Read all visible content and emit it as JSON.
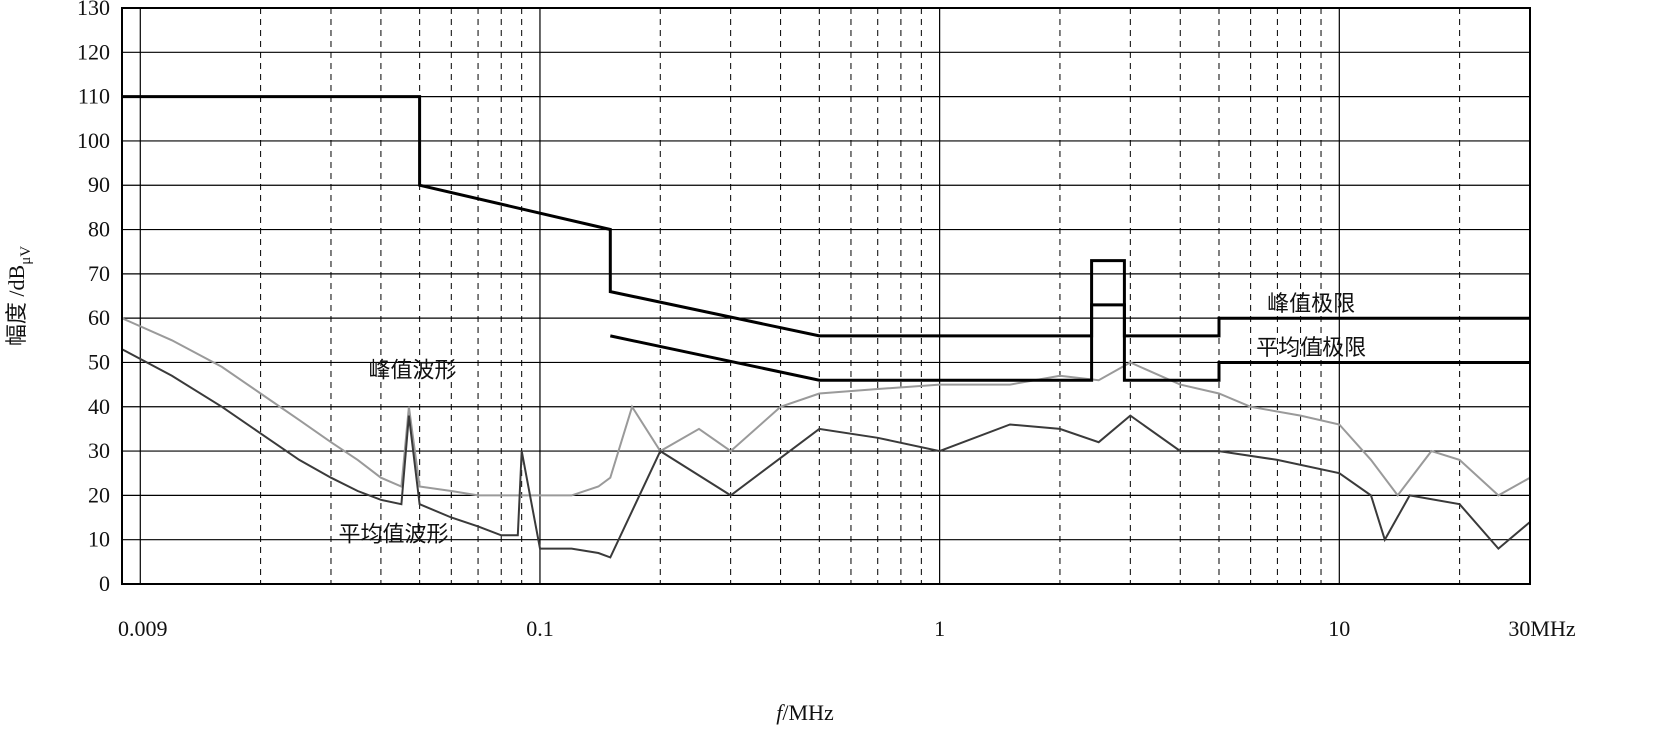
{
  "chart_data": {
    "type": "line",
    "title": "",
    "xlabel": "f/MHz",
    "xlabel_italic": "f",
    "xlabel_unit": "/MHz",
    "ylabel": "幅度/dBμV",
    "ylabel_main": "幅度 /dB",
    "ylabel_sub": "μV",
    "x_scale": "log",
    "xlim": [
      0.009,
      30
    ],
    "ylim": [
      0,
      130
    ],
    "grid": true,
    "legend": "none",
    "x_ticks": [
      {
        "value": 0.009,
        "label": "0.009"
      },
      {
        "value": 0.1,
        "label": "0.1"
      },
      {
        "value": 1,
        "label": "1"
      },
      {
        "value": 10,
        "label": "10"
      },
      {
        "value": 30,
        "label": "30MHz"
      }
    ],
    "y_ticks": [
      {
        "value": 0,
        "label": "0"
      },
      {
        "value": 10,
        "label": "10"
      },
      {
        "value": 20,
        "label": "20"
      },
      {
        "value": 30,
        "label": "30"
      },
      {
        "value": 40,
        "label": "40"
      },
      {
        "value": 50,
        "label": "50"
      },
      {
        "value": 60,
        "label": "60"
      },
      {
        "value": 70,
        "label": "70"
      },
      {
        "value": 80,
        "label": "80"
      },
      {
        "value": 90,
        "label": "90"
      },
      {
        "value": 100,
        "label": "100"
      },
      {
        "value": 110,
        "label": "110"
      },
      {
        "value": 120,
        "label": "120"
      },
      {
        "value": 130,
        "label": "130"
      }
    ],
    "series": [
      {
        "key": "peak_limit",
        "name": "峰值极限",
        "color": "#000000",
        "x": [
          0.009,
          0.05,
          0.05,
          0.15,
          0.15,
          0.5,
          2.4,
          2.4,
          2.9,
          2.9,
          5,
          5,
          30
        ],
        "y": [
          110,
          110,
          90,
          80,
          66,
          56,
          56,
          73,
          73,
          56,
          56,
          60,
          60
        ]
      },
      {
        "key": "average_limit",
        "name": "平均值极限",
        "color": "#000000",
        "x": [
          0.15,
          0.5,
          2.4,
          2.4,
          2.9,
          2.9,
          5,
          5,
          30
        ],
        "y": [
          56,
          46,
          46,
          63,
          63,
          46,
          46,
          50,
          50
        ]
      },
      {
        "key": "peak_waveform",
        "name": "峰值波形",
        "color": "#9a9a9a",
        "x": [
          0.009,
          0.012,
          0.016,
          0.02,
          0.025,
          0.03,
          0.035,
          0.04,
          0.045,
          0.047,
          0.05,
          0.06,
          0.07,
          0.08,
          0.09,
          0.1,
          0.12,
          0.14,
          0.15,
          0.17,
          0.2,
          0.25,
          0.3,
          0.4,
          0.5,
          0.7,
          1,
          1.5,
          2,
          2.5,
          3,
          4,
          5,
          6,
          8,
          10,
          12,
          14,
          17,
          20,
          25,
          30
        ],
        "y": [
          60,
          55,
          49,
          43,
          37,
          32,
          28,
          24,
          22,
          40,
          22,
          21,
          20,
          20,
          20,
          20,
          20,
          22,
          24,
          40,
          30,
          35,
          30,
          40,
          43,
          44,
          45,
          45,
          47,
          46,
          50,
          45,
          43,
          40,
          38,
          36,
          28,
          20,
          30,
          28,
          20,
          24
        ]
      },
      {
        "key": "average_waveform",
        "name": "平均值波形",
        "color": "#3a3a3a",
        "x": [
          0.009,
          0.012,
          0.016,
          0.02,
          0.025,
          0.03,
          0.035,
          0.04,
          0.045,
          0.047,
          0.05,
          0.06,
          0.07,
          0.08,
          0.088,
          0.09,
          0.1,
          0.12,
          0.14,
          0.15,
          0.2,
          0.3,
          0.5,
          0.7,
          1,
          1.5,
          2,
          2.5,
          3,
          4,
          5,
          7,
          10,
          12,
          13,
          15,
          20,
          25,
          30
        ],
        "y": [
          53,
          47,
          40,
          34,
          28,
          24,
          21,
          19,
          18,
          38,
          18,
          15,
          13,
          11,
          11,
          30,
          8,
          8,
          7,
          6,
          30,
          20,
          35,
          33,
          30,
          36,
          35,
          32,
          38,
          30,
          30,
          28,
          25,
          20,
          10,
          20,
          18,
          8,
          14
        ]
      }
    ],
    "annotations": [
      {
        "text": "峰值极限",
        "x": 8.5,
        "y": 63
      },
      {
        "text": "平均值极限",
        "x": 8.5,
        "y": 53
      },
      {
        "text": "峰值波形",
        "x": 0.048,
        "y": 48
      },
      {
        "text": "平均值波形",
        "x": 0.043,
        "y": 11
      }
    ]
  }
}
